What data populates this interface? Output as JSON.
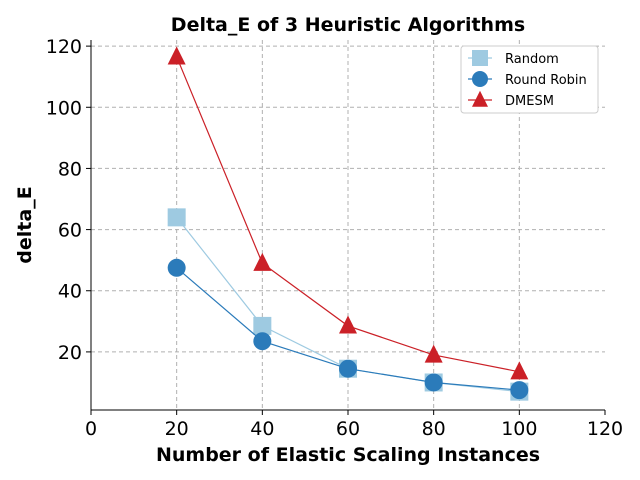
{
  "chart_data": {
    "type": "line",
    "title": "Delta_E of 3 Heuristic Algorithms",
    "xlabel": "Number of Elastic Scaling Instances",
    "ylabel": "delta_E",
    "x": [
      20,
      40,
      60,
      80,
      100
    ],
    "xlim": [
      0,
      120
    ],
    "ylim": [
      1,
      122
    ],
    "xticks": [
      0,
      20,
      40,
      60,
      80,
      100,
      120
    ],
    "yticks": [
      20,
      40,
      60,
      80,
      100,
      120
    ],
    "grid": true,
    "legend_position": "top-right",
    "series": [
      {
        "name": "Random",
        "values": [
          64,
          28.5,
          14.5,
          10,
          7
        ],
        "color": "#9ecae1",
        "marker": "square"
      },
      {
        "name": "Round Robin",
        "values": [
          47.5,
          23.5,
          14.5,
          10,
          7.5
        ],
        "color": "#2b7bba",
        "marker": "circle"
      },
      {
        "name": "DMESM",
        "values": [
          116.5,
          49,
          28.5,
          19,
          13.5
        ],
        "color": "#cb2027",
        "marker": "triangle"
      }
    ]
  }
}
